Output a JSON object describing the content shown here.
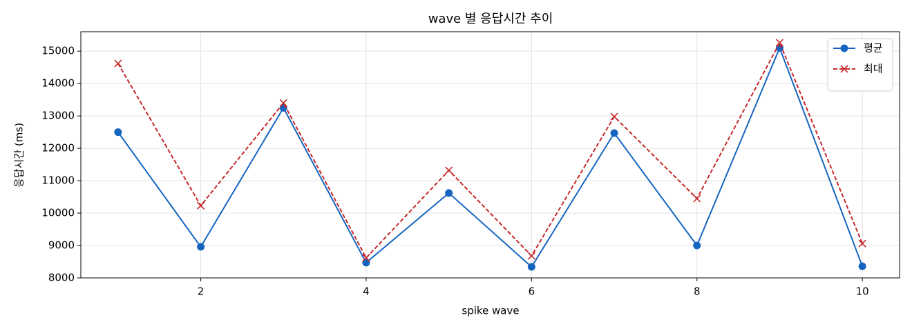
{
  "chart_data": {
    "type": "line",
    "title": "wave 별 응답시간 추이",
    "x_label": "spike wave",
    "y_label": "응답시간 (ms)",
    "x": [
      1,
      2,
      3,
      4,
      5,
      6,
      7,
      8,
      9,
      10
    ],
    "series": [
      {
        "name": "평균",
        "color": "#1565c0",
        "linestyle": "solid",
        "marker": "o",
        "values": [
          12500,
          8960,
          13250,
          8470,
          10620,
          8340,
          12470,
          9000,
          15100,
          8360
        ]
      },
      {
        "name": "최대",
        "color": "#c62828",
        "linestyle": "dashed",
        "marker": "x",
        "values": [
          14620,
          10230,
          13400,
          8620,
          11320,
          8680,
          12980,
          10450,
          15260,
          9060
        ]
      }
    ],
    "xlim": [
      0.55,
      10.45
    ],
    "xticks": [
      2,
      4,
      6,
      8,
      10
    ],
    "ylim": [
      8000,
      15600
    ],
    "yticks": [
      8000,
      9000,
      10000,
      11000,
      12000,
      13000,
      14000,
      15000
    ],
    "grid": true,
    "legend": "upper right"
  }
}
